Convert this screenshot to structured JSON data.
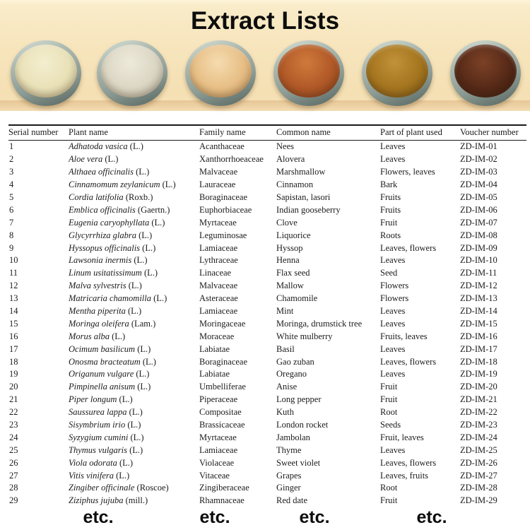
{
  "banner": {
    "title": "Extract Lists",
    "dishes": [
      {
        "name": "petri-dish-pale-cream-powder",
        "powder_light": "#f4eecf",
        "powder_mid": "#e9e1b8",
        "powder_dark": "#c6ba90"
      },
      {
        "name": "petri-dish-off-white-powder",
        "powder_light": "#eeeadb",
        "powder_mid": "#dcd7c4",
        "powder_dark": "#b4af9d"
      },
      {
        "name": "petri-dish-tan-powder",
        "powder_light": "#f6dcb0",
        "powder_mid": "#e7bf86",
        "powder_dark": "#c4955c"
      },
      {
        "name": "petri-dish-rust-orange-powder",
        "powder_light": "#cf7a3c",
        "powder_mid": "#b25a28",
        "powder_dark": "#843c19"
      },
      {
        "name": "petri-dish-amber-powder",
        "powder_light": "#c2913a",
        "powder_mid": "#a5761f",
        "powder_dark": "#775213"
      },
      {
        "name": "petri-dish-dark-brown-powder",
        "powder_light": "#7c4126",
        "powder_mid": "#572a18",
        "powder_dark": "#33160c"
      }
    ]
  },
  "table": {
    "headers": [
      "Serial number",
      "Plant name",
      "Family name",
      "Common name",
      "Part of plant used",
      "Voucher number"
    ],
    "rows": [
      {
        "serial": "1",
        "plant": "Adhatoda vasica",
        "authority": "(L.)",
        "family": "Acanthaceae",
        "common": "Nees",
        "part": "Leaves",
        "voucher": "ZD-IM-01"
      },
      {
        "serial": "2",
        "plant": "Aloe vera",
        "authority": "(L.)",
        "family": "Xanthorrhoeaceae",
        "common": "Alovera",
        "part": "Leaves",
        "voucher": "ZD-IM-02"
      },
      {
        "serial": "3",
        "plant": "Althaea officinalis",
        "authority": "(L.)",
        "family": "Malvaceae",
        "common": "Marshmallow",
        "part": "Flowers, leaves",
        "voucher": "ZD-IM-03"
      },
      {
        "serial": "4",
        "plant": "Cinnamomum zeylanicum",
        "authority": "(L.)",
        "family": "Lauraceae",
        "common": "Cinnamon",
        "part": "Bark",
        "voucher": "ZD-IM-04"
      },
      {
        "serial": "5",
        "plant": "Cordia latifolia",
        "authority": "(Roxb.)",
        "family": "Boraginaceae",
        "common": "Sapistan, lasori",
        "part": "Fruits",
        "voucher": "ZD-IM-05"
      },
      {
        "serial": "6",
        "plant": "Emblica officinalis",
        "authority": "(Gaertn.)",
        "family": "Euphorbiaceae",
        "common": "Indian gooseberry",
        "part": "Fruits",
        "voucher": "ZD-IM-06"
      },
      {
        "serial": "7",
        "plant": "Eugenia caryophyllata",
        "authority": "(L.)",
        "family": "Myrtaceae",
        "common": "Clove",
        "part": "Fruit",
        "voucher": "ZD-IM-07"
      },
      {
        "serial": "8",
        "plant": "Glycyrrhiza glabra",
        "authority": "(L.)",
        "family": "Leguminosae",
        "common": "Liquorice",
        "part": "Roots",
        "voucher": "ZD-IM-08"
      },
      {
        "serial": "9",
        "plant": "Hyssopus officinalis",
        "authority": "(L.)",
        "family": "Lamiaceae",
        "common": "Hyssop",
        "part": "Leaves, flowers",
        "voucher": "ZD-IM-09"
      },
      {
        "serial": "10",
        "plant": "Lawsonia inermis",
        "authority": "(L.)",
        "family": "Lythraceae",
        "common": "Henna",
        "part": "Leaves",
        "voucher": "ZD-IM-10"
      },
      {
        "serial": "11",
        "plant": "Linum usitatissimum",
        "authority": "(L.)",
        "family": "Linaceae",
        "common": "Flax seed",
        "part": "Seed",
        "voucher": "ZD-IM-11"
      },
      {
        "serial": "12",
        "plant": "Malva sylvestris",
        "authority": "(L.)",
        "family": "Malvaceae",
        "common": "Mallow",
        "part": "Flowers",
        "voucher": "ZD-IM-12"
      },
      {
        "serial": "13",
        "plant": "Matricaria chamomilla",
        "authority": "(L.)",
        "family": "Asteraceae",
        "common": "Chamomile",
        "part": "Flowers",
        "voucher": "ZD-IM-13"
      },
      {
        "serial": "14",
        "plant": "Mentha piperita",
        "authority": "(L.)",
        "family": "Lamiaceae",
        "common": "Mint",
        "part": "Leaves",
        "voucher": "ZD-IM-14"
      },
      {
        "serial": "15",
        "plant": "Moringa oleifera",
        "authority": "(Lam.)",
        "family": "Moringaceae",
        "common": "Moringa, drumstick tree",
        "part": "Leaves",
        "voucher": "ZD-IM-15"
      },
      {
        "serial": "16",
        "plant": "Morus alba",
        "authority": "(L.)",
        "family": "Moraceae",
        "common": "White mulberry",
        "part": "Fruits, leaves",
        "voucher": "ZD-IM-16"
      },
      {
        "serial": "17",
        "plant": "Ocimum basilicum",
        "authority": "(L.)",
        "family": "Labiatae",
        "common": "Basil",
        "part": "Leaves",
        "voucher": "ZD-IM-17"
      },
      {
        "serial": "18",
        "plant": "Onosma bracteatum",
        "authority": "(L.)",
        "family": "Boraginaceae",
        "common": "Gao zuban",
        "part": "Leaves, flowers",
        "voucher": "ZD-IM-18"
      },
      {
        "serial": "19",
        "plant": "Origanum vulgare",
        "authority": "(L.)",
        "family": "Labiatae",
        "common": "Oregano",
        "part": "Leaves",
        "voucher": "ZD-IM-19"
      },
      {
        "serial": "20",
        "plant": "Pimpinella anisum",
        "authority": "(L.)",
        "family": "Umbelliferae",
        "common": "Anise",
        "part": "Fruit",
        "voucher": "ZD-IM-20"
      },
      {
        "serial": "21",
        "plant": "Piper longum",
        "authority": "(L.)",
        "family": "Piperaceae",
        "common": "Long pepper",
        "part": "Fruit",
        "voucher": "ZD-IM-21"
      },
      {
        "serial": "22",
        "plant": "Saussurea lappa",
        "authority": "(L.)",
        "family": "Compositae",
        "common": "Kuth",
        "part": "Root",
        "voucher": "ZD-IM-22"
      },
      {
        "serial": "23",
        "plant": "Sisymbrium irio",
        "authority": "(L.)",
        "family": "Brassicaceae",
        "common": "London rocket",
        "part": "Seeds",
        "voucher": "ZD-IM-23"
      },
      {
        "serial": "24",
        "plant": "Syzygium cumini",
        "authority": "(L.)",
        "family": "Myrtaceae",
        "common": "Jambolan",
        "part": "Fruit, leaves",
        "voucher": "ZD-IM-24"
      },
      {
        "serial": "25",
        "plant": "Thymus vulgaris",
        "authority": "(L.)",
        "family": "Lamiaceae",
        "common": "Thyme",
        "part": "Leaves",
        "voucher": "ZD-IM-25"
      },
      {
        "serial": "26",
        "plant": "Viola odorata",
        "authority": "(L.)",
        "family": "Violaceae",
        "common": "Sweet violet",
        "part": "Leaves, flowers",
        "voucher": "ZD-IM-26"
      },
      {
        "serial": "27",
        "plant": "Vitis vinifera",
        "authority": "(L.)",
        "family": "Vitaceae",
        "common": "Grapes",
        "part": "Leaves, fruits",
        "voucher": "ZD-IM-27"
      },
      {
        "serial": "28",
        "plant": "Zingiber officinale",
        "authority": "(Roscoe)",
        "family": "Zingiberaceae",
        "common": "Ginger",
        "part": "Root",
        "voucher": "ZD-IM-28"
      },
      {
        "serial": "29",
        "plant": "Ziziphus jujuba",
        "authority": "(mill.)",
        "family": "Rhamnaceae",
        "common": "Red date",
        "part": "Fruit",
        "voucher": "ZD-IM-29"
      }
    ]
  },
  "footer": {
    "etc_labels": [
      "etc.",
      "etc.",
      "etc.",
      "etc."
    ]
  },
  "colors": {
    "banner_background": "#f7e5bd",
    "banner_shelf": "#ecd0a2",
    "title_text": "#0d0d0d",
    "table_text": "#1b1b1b",
    "table_rule": "#1a1a1a"
  }
}
